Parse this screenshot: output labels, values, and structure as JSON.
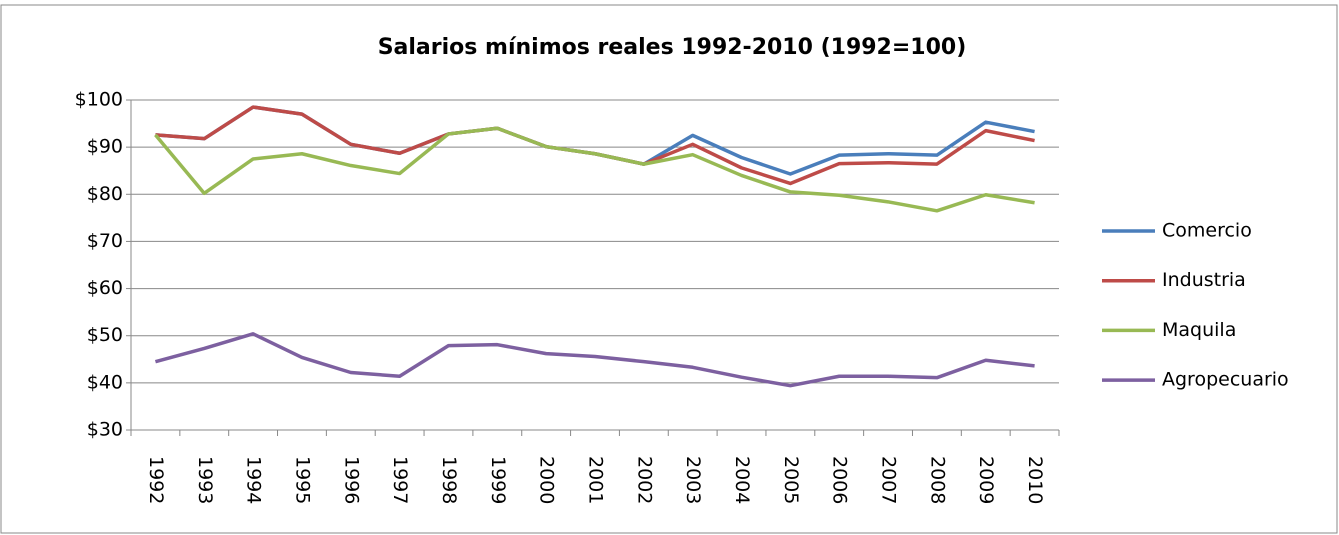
{
  "chart_data": {
    "type": "line",
    "title": "Salarios mínimos reales 1992-2010 (1992=100)",
    "categories": [
      "1992",
      "1993",
      "1994",
      "1995",
      "1996",
      "1997",
      "1998",
      "1999",
      "2000",
      "2001",
      "2002",
      "2003",
      "2004",
      "2005",
      "2006",
      "2007",
      "2008",
      "2009",
      "2010"
    ],
    "series": [
      {
        "name": "Comercio",
        "color": "#4a7ebb",
        "values": [
          92.6,
          91.8,
          98.5,
          97.0,
          90.6,
          88.7,
          92.8,
          94.0,
          90.1,
          88.6,
          86.4,
          92.5,
          87.8,
          84.3,
          88.3,
          88.6,
          88.3,
          95.3,
          93.3
        ]
      },
      {
        "name": "Industria",
        "color": "#be4b48",
        "values": [
          92.6,
          91.8,
          98.5,
          97.0,
          90.6,
          88.7,
          92.8,
          94.0,
          90.1,
          88.6,
          86.4,
          90.6,
          85.6,
          82.3,
          86.5,
          86.7,
          86.4,
          93.5,
          91.4
        ]
      },
      {
        "name": "Maquila",
        "color": "#98b954",
        "values": [
          92.6,
          80.2,
          87.5,
          88.6,
          86.1,
          84.4,
          92.8,
          94.0,
          90.1,
          88.6,
          86.4,
          88.4,
          84.0,
          80.5,
          79.8,
          78.4,
          76.5,
          79.9,
          78.2
        ]
      },
      {
        "name": "Agropecuario",
        "color": "#7d60a0",
        "values": [
          44.5,
          47.3,
          50.4,
          45.4,
          42.2,
          41.4,
          47.9,
          48.1,
          46.2,
          45.6,
          44.5,
          43.3,
          41.2,
          39.4,
          41.4,
          41.4,
          41.1,
          44.8,
          43.6
        ]
      }
    ],
    "ylim": [
      30,
      100
    ],
    "yticks": [
      {
        "value": 30,
        "label": "$30"
      },
      {
        "value": 40,
        "label": "$40"
      },
      {
        "value": 50,
        "label": "$50"
      },
      {
        "value": 60,
        "label": "$60"
      },
      {
        "value": 70,
        "label": "$70"
      },
      {
        "value": 80,
        "label": "$80"
      },
      {
        "value": 90,
        "label": "$90"
      },
      {
        "value": 100,
        "label": "$100"
      }
    ],
    "grid": true,
    "legend": "right"
  }
}
